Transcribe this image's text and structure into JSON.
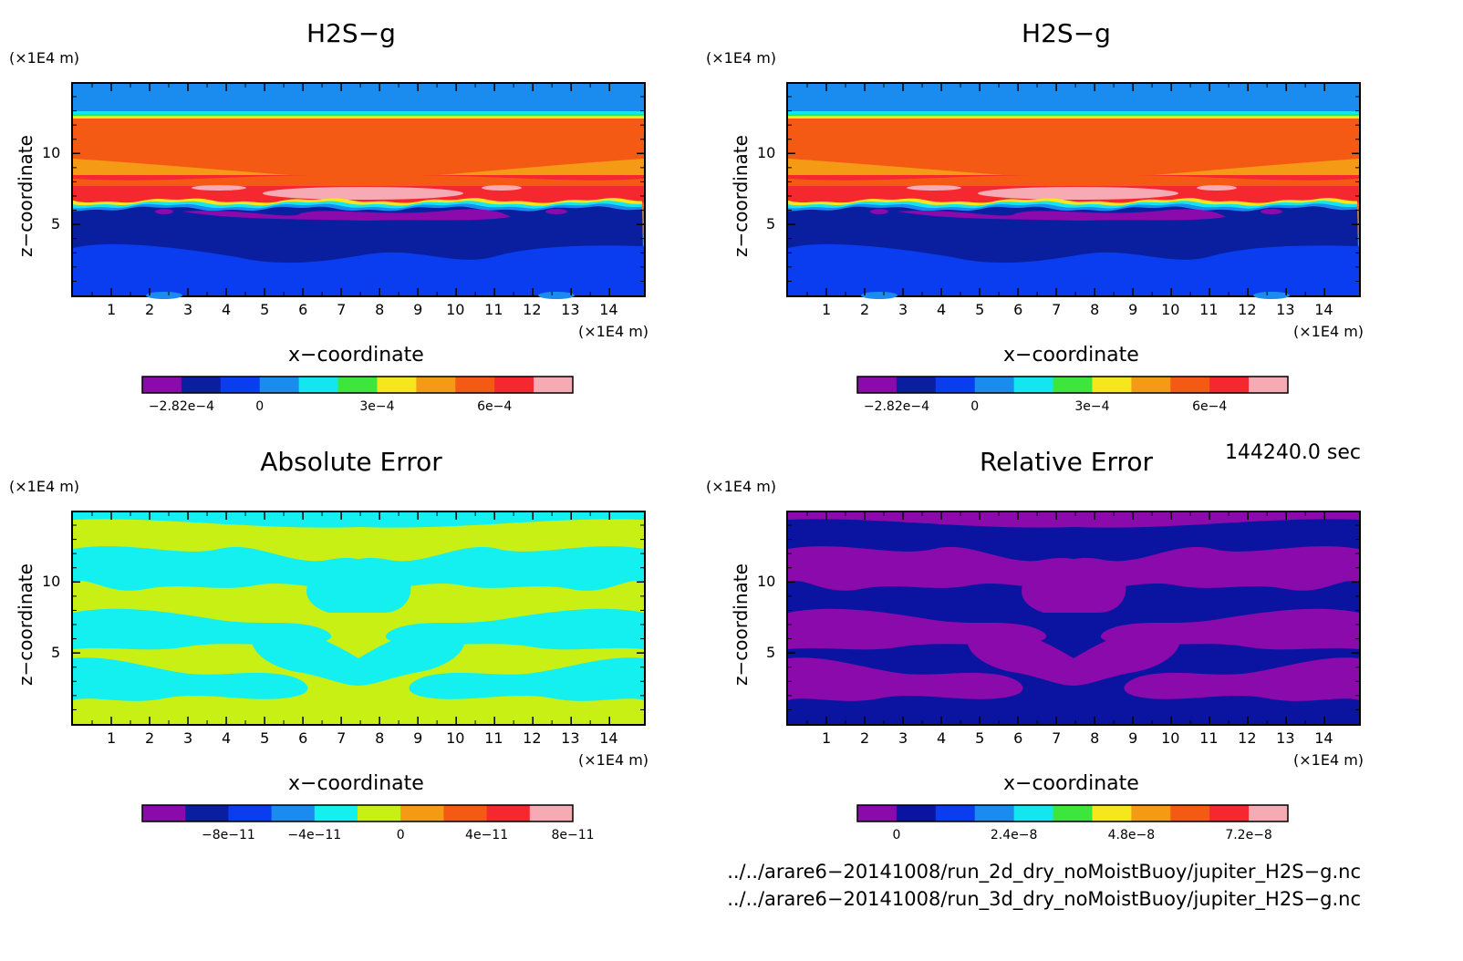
{
  "panels": [
    {
      "title": "H2S−g",
      "y_unit": "(×1E4 m)",
      "x_unit": "(×1E4 m)",
      "ylabel": "z−coordinate",
      "xlabel": "x−coordinate",
      "colorbar_ticks": [
        "−2.82e−4",
        "0",
        "3e−4",
        "6e−4"
      ],
      "colorbar_tick_positions": [
        0,
        2,
        5,
        8
      ],
      "colorbar_colors": [
        "#8a0aab",
        "#0a1ea0",
        "#0a3df0",
        "#1a8cf0",
        "#14e6f0",
        "#3ce63c",
        "#f5e61e",
        "#f59a14",
        "#f55a14",
        "#f52830",
        "#f5aab4"
      ],
      "field_type": "h2s"
    },
    {
      "title": "H2S−g",
      "y_unit": "(×1E4 m)",
      "x_unit": "(×1E4 m)",
      "ylabel": "z−coordinate",
      "xlabel": "x−coordinate",
      "colorbar_ticks": [
        "−2.82e−4",
        "0",
        "3e−4",
        "6e−4"
      ],
      "colorbar_tick_positions": [
        0,
        2,
        5,
        8
      ],
      "colorbar_colors": [
        "#8a0aab",
        "#0a1ea0",
        "#0a3df0",
        "#1a8cf0",
        "#14e6f0",
        "#3ce63c",
        "#f5e61e",
        "#f59a14",
        "#f55a14",
        "#f52830",
        "#f5aab4"
      ],
      "field_type": "h2s"
    },
    {
      "title": "Absolute Error",
      "y_unit": "(×1E4 m)",
      "x_unit": "(×1E4 m)",
      "ylabel": "z−coordinate",
      "xlabel": "x−coordinate",
      "colorbar_ticks": [
        "−8e−11",
        "−4e−11",
        "0",
        "4e−11",
        "8e−11"
      ],
      "colorbar_tick_positions": [
        1,
        3,
        5,
        7,
        9
      ],
      "colorbar_colors": [
        "#8a0aab",
        "#0a1ea0",
        "#0a3df0",
        "#1a8cf0",
        "#14f0f0",
        "#c8f014",
        "#f59a14",
        "#f55a14",
        "#f52830",
        "#f5aab4"
      ],
      "field_type": "abs"
    },
    {
      "title": "Relative Error",
      "y_unit": "(×1E4 m)",
      "x_unit": "(×1E4 m)",
      "ylabel": "z−coordinate",
      "xlabel": "x−coordinate",
      "colorbar_ticks": [
        "0",
        "2.4e−8",
        "4.8e−8",
        "7.2e−8"
      ],
      "colorbar_tick_positions": [
        0,
        3,
        6,
        9
      ],
      "colorbar_colors": [
        "#8a0aab",
        "#0a14a0",
        "#0a3df0",
        "#1a8cf0",
        "#14e6f0",
        "#3ce63c",
        "#f5e61e",
        "#f59a14",
        "#f55a14",
        "#f52830",
        "#f5aab4"
      ],
      "field_type": "rel"
    }
  ],
  "time_label": "144240.0 sec",
  "files": [
    "../../arare6−20141008/run_2d_dry_noMoistBuoy/jupiter_H2S−g.nc",
    "../../arare6−20141008/run_3d_dry_noMoistBuoy/jupiter_H2S−g.nc"
  ],
  "chart_data": [
    {
      "type": "heatmap",
      "title": "H2S−g",
      "xlabel": "x−coordinate",
      "ylabel": "z−coordinate",
      "x_unit": "(×1E4 m)",
      "y_unit": "(×1E4 m)",
      "xlim": [
        0,
        15
      ],
      "ylim": [
        0,
        15
      ],
      "x_ticks": [
        1,
        2,
        3,
        4,
        5,
        6,
        7,
        8,
        9,
        10,
        11,
        12,
        13,
        14
      ],
      "y_ticks": [
        5,
        10
      ],
      "colorbar_ticks": [
        "−2.82e−4",
        "0",
        "3e−4",
        "6e−4"
      ]
    },
    {
      "type": "heatmap",
      "title": "H2S−g",
      "xlabel": "x−coordinate",
      "ylabel": "z−coordinate",
      "x_unit": "(×1E4 m)",
      "y_unit": "(×1E4 m)",
      "xlim": [
        0,
        15
      ],
      "ylim": [
        0,
        15
      ],
      "x_ticks": [
        1,
        2,
        3,
        4,
        5,
        6,
        7,
        8,
        9,
        10,
        11,
        12,
        13,
        14
      ],
      "y_ticks": [
        5,
        10
      ],
      "colorbar_ticks": [
        "−2.82e−4",
        "0",
        "3e−4",
        "6e−4"
      ]
    },
    {
      "type": "heatmap",
      "title": "Absolute Error",
      "xlabel": "x−coordinate",
      "ylabel": "z−coordinate",
      "x_unit": "(×1E4 m)",
      "y_unit": "(×1E4 m)",
      "xlim": [
        0,
        15
      ],
      "ylim": [
        0,
        15
      ],
      "x_ticks": [
        1,
        2,
        3,
        4,
        5,
        6,
        7,
        8,
        9,
        10,
        11,
        12,
        13,
        14
      ],
      "y_ticks": [
        5,
        10
      ],
      "colorbar_ticks": [
        "−8e−11",
        "−4e−11",
        "0",
        "4e−11",
        "8e−11"
      ]
    },
    {
      "type": "heatmap",
      "title": "Relative Error",
      "xlabel": "x−coordinate",
      "ylabel": "z−coordinate",
      "x_unit": "(×1E4 m)",
      "y_unit": "(×1E4 m)",
      "xlim": [
        0,
        15
      ],
      "ylim": [
        0,
        15
      ],
      "x_ticks": [
        1,
        2,
        3,
        4,
        5,
        6,
        7,
        8,
        9,
        10,
        11,
        12,
        13,
        14
      ],
      "y_ticks": [
        5,
        10
      ],
      "colorbar_ticks": [
        "0",
        "2.4e−8",
        "4.8e−8",
        "7.2e−8"
      ]
    }
  ]
}
